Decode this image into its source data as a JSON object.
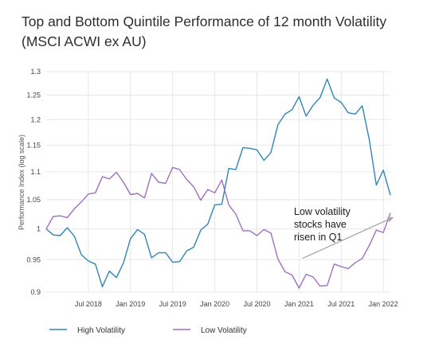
{
  "chart_data": {
    "type": "line",
    "title_lines": [
      "Top and Bottom Quintile Performance of 12 month Volatility",
      "(MSCI ACWI ex AU)"
    ],
    "ylabel": "Performance Index (log scale)",
    "y_scale": "log",
    "ylim": [
      0.9,
      1.3
    ],
    "y_ticks": [
      0.9,
      0.95,
      1,
      1.05,
      1.1,
      1.15,
      1.2,
      1.25,
      1.3
    ],
    "y_tick_labels": [
      "0.9",
      "0.95",
      "1",
      "1.05",
      "1.1",
      "1.15",
      "1.2",
      "1.25",
      "1.3"
    ],
    "x_tick_labels": [
      "Jul 2018",
      "Jan 2019",
      "Jul 2019",
      "Jan 2020",
      "Jul 2020",
      "Jan 2021",
      "Jul 2021",
      "Jan 2022"
    ],
    "x_tick_index": [
      6,
      12,
      18,
      24,
      30,
      36,
      42,
      48
    ],
    "grid": true,
    "legend_position": "bottom",
    "annotation": {
      "lines": [
        "Low volatility",
        "stocks have",
        "risen in Q1"
      ],
      "arrow_from_index": 36.5,
      "arrow_from_value": 0.952,
      "arrow_to_index": 49.5,
      "arrow_to_value": 1.02
    },
    "series": [
      {
        "name": "High Volatility",
        "color": "#2f86b8",
        "values": [
          1.0,
          0.99,
          0.989,
          1.002,
          0.988,
          0.958,
          0.948,
          0.943,
          0.908,
          0.932,
          0.922,
          0.945,
          0.984,
          0.999,
          0.991,
          0.953,
          0.961,
          0.961,
          0.946,
          0.947,
          0.964,
          0.97,
          0.998,
          1.008,
          1.041,
          1.042,
          1.106,
          1.104,
          1.145,
          1.144,
          1.141,
          1.121,
          1.136,
          1.19,
          1.211,
          1.22,
          1.247,
          1.207,
          1.229,
          1.245,
          1.284,
          1.244,
          1.235,
          1.214,
          1.211,
          1.228,
          1.16,
          1.076,
          1.103,
          1.058
        ]
      },
      {
        "name": "Low Volatility",
        "color": "#a06fc0",
        "values": [
          1.0,
          1.021,
          1.022,
          1.019,
          1.034,
          1.046,
          1.06,
          1.062,
          1.091,
          1.087,
          1.099,
          1.081,
          1.059,
          1.061,
          1.053,
          1.097,
          1.081,
          1.079,
          1.108,
          1.104,
          1.086,
          1.073,
          1.049,
          1.068,
          1.062,
          1.085,
          1.041,
          1.025,
          0.997,
          0.997,
          0.989,
          0.999,
          0.993,
          0.951,
          0.931,
          0.926,
          0.906,
          0.927,
          0.923,
          0.909,
          0.91,
          0.943,
          0.939,
          0.936,
          0.945,
          0.952,
          0.973,
          0.998,
          0.994,
          1.027
        ]
      }
    ]
  }
}
